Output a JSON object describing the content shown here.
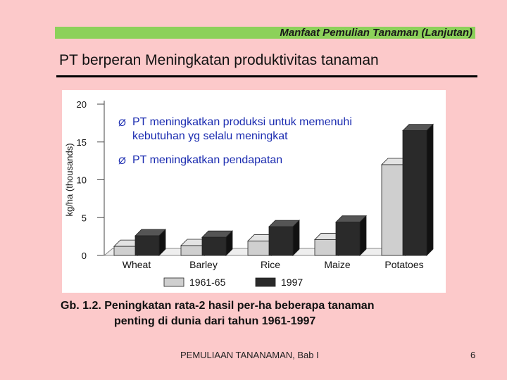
{
  "header": {
    "banner": "Manfaat Pemulian Tanaman (Lanjutan)"
  },
  "slide": {
    "title": "PT berperan Meningkatan produktivitas tanaman"
  },
  "bullets": [
    {
      "mark": "Ø",
      "text": "PT meningkatkan produksi untuk memenuhi kebutuhan yg selalu meningkat"
    },
    {
      "mark": "Ø",
      "text": "PT meningkatkan pendapatan"
    }
  ],
  "chart_data": {
    "type": "bar",
    "categories": [
      "Wheat",
      "Barley",
      "Rice",
      "Maize",
      "Potatoes"
    ],
    "series": [
      {
        "name": "1961-65",
        "values": [
          1.2,
          1.3,
          1.9,
          2.1,
          12.0
        ],
        "color": "#cfcfcf"
      },
      {
        "name": "1997",
        "values": [
          2.6,
          2.4,
          3.8,
          4.4,
          16.5
        ],
        "color": "#2a2a2a"
      }
    ],
    "ylabel": "kg/ha (thousands)",
    "ylim": [
      0,
      20
    ],
    "yticks": [
      "0",
      "5",
      "10",
      "15",
      "20"
    ],
    "grid": false,
    "legend_position": "bottom"
  },
  "caption": {
    "line1": "Gb. 1.2. Peningkatan rata-2 hasil per-ha beberapa tanaman",
    "line2": "penting di dunia dari tahun 1961-1997"
  },
  "footer": {
    "text": "PEMULIAAN TANANAMAN, Bab I",
    "page": "6"
  }
}
